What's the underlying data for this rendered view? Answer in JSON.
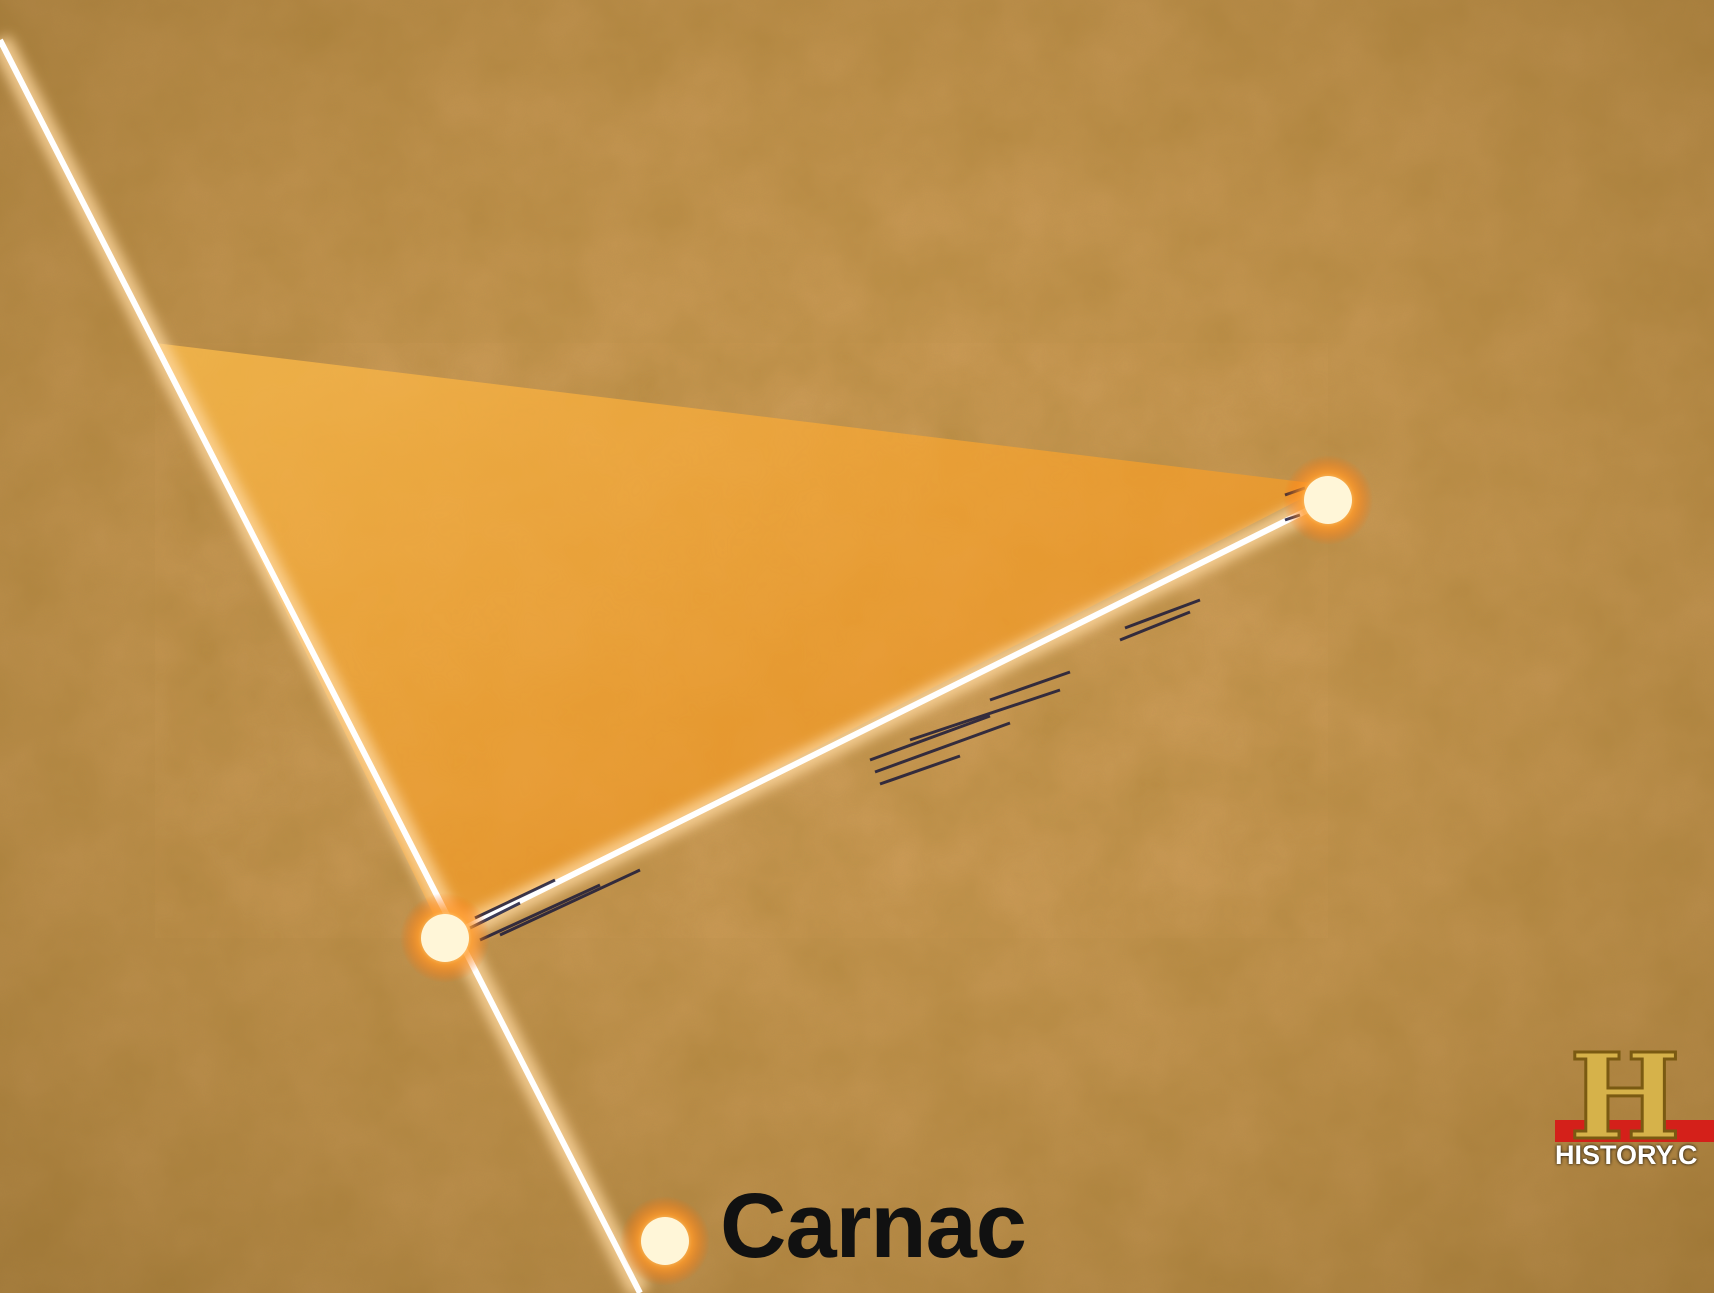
{
  "map": {
    "places": [
      {
        "name": "Carnac"
      }
    ]
  },
  "watermark": {
    "logo": "H",
    "url_text": "HISTORY.C"
  },
  "colors": {
    "background": "#b98a3e",
    "triangle_fill": "#f2a130",
    "beam": "#ffffff",
    "node_glow": "#ff8a1a"
  }
}
